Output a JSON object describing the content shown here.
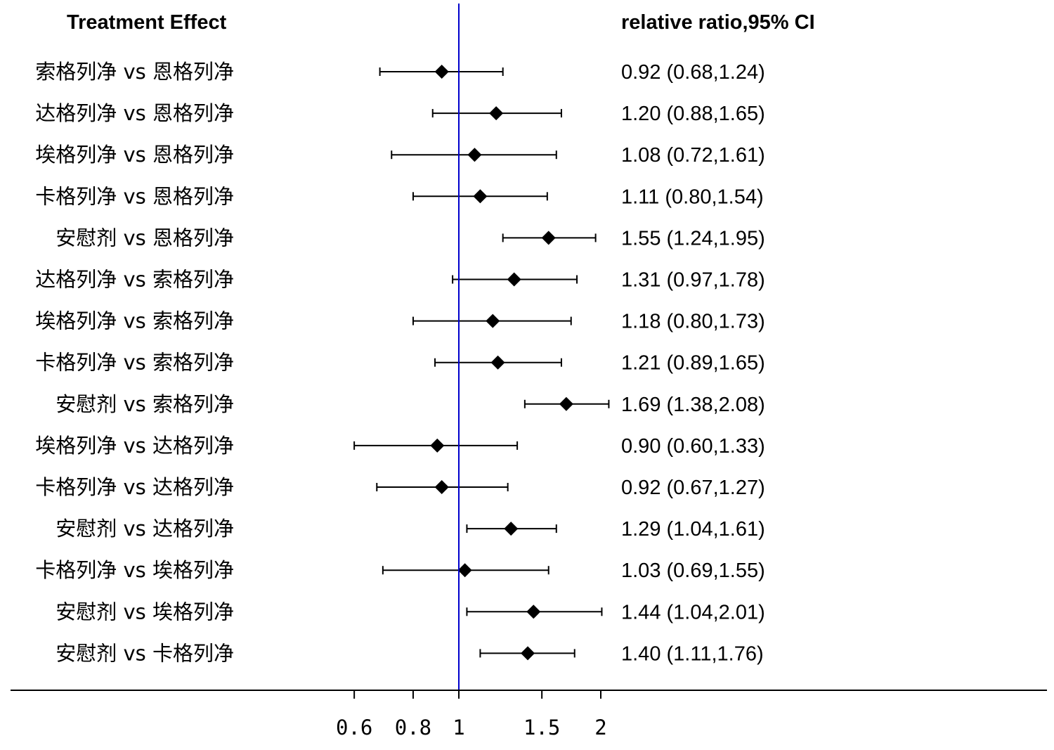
{
  "chart_data": {
    "type": "forest",
    "column_headers": {
      "left": "Treatment Effect",
      "right": "relative ratio,95% CI"
    },
    "x_scale": "log",
    "xlim": [
      0.5,
      2.6
    ],
    "reference_line": 1,
    "x_ticks": [
      {
        "value": 0.6,
        "label": "0.6"
      },
      {
        "value": 0.8,
        "label": "0.8"
      },
      {
        "value": 1,
        "label": "1"
      },
      {
        "value": 1.5,
        "label": "1.5"
      },
      {
        "value": 2,
        "label": "2"
      }
    ],
    "rows": [
      {
        "label": "索格列净 vs 恩格列净",
        "estimate": 0.92,
        "lower": 0.68,
        "upper": 1.24,
        "text": "0.92 (0.68,1.24)"
      },
      {
        "label": "达格列净 vs 恩格列净",
        "estimate": 1.2,
        "lower": 0.88,
        "upper": 1.65,
        "text": "1.20 (0.88,1.65)"
      },
      {
        "label": "埃格列净 vs 恩格列净",
        "estimate": 1.08,
        "lower": 0.72,
        "upper": 1.61,
        "text": "1.08 (0.72,1.61)"
      },
      {
        "label": "卡格列净 vs 恩格列净",
        "estimate": 1.11,
        "lower": 0.8,
        "upper": 1.54,
        "text": "1.11 (0.80,1.54)"
      },
      {
        "label": "安慰剂 vs 恩格列净",
        "estimate": 1.55,
        "lower": 1.24,
        "upper": 1.95,
        "text": "1.55 (1.24,1.95)"
      },
      {
        "label": "达格列净 vs 索格列净",
        "estimate": 1.31,
        "lower": 0.97,
        "upper": 1.78,
        "text": "1.31 (0.97,1.78)"
      },
      {
        "label": "埃格列净 vs 索格列净",
        "estimate": 1.18,
        "lower": 0.8,
        "upper": 1.73,
        "text": "1.18 (0.80,1.73)"
      },
      {
        "label": "卡格列净 vs 索格列净",
        "estimate": 1.21,
        "lower": 0.89,
        "upper": 1.65,
        "text": "1.21 (0.89,1.65)"
      },
      {
        "label": "安慰剂 vs 索格列净",
        "estimate": 1.69,
        "lower": 1.38,
        "upper": 2.08,
        "text": "1.69 (1.38,2.08)"
      },
      {
        "label": "埃格列净 vs 达格列净",
        "estimate": 0.9,
        "lower": 0.6,
        "upper": 1.33,
        "text": "0.90 (0.60,1.33)"
      },
      {
        "label": "卡格列净 vs 达格列净",
        "estimate": 0.92,
        "lower": 0.67,
        "upper": 1.27,
        "text": "0.92 (0.67,1.27)"
      },
      {
        "label": "安慰剂 vs 达格列净",
        "estimate": 1.29,
        "lower": 1.04,
        "upper": 1.61,
        "text": "1.29 (1.04,1.61)"
      },
      {
        "label": "卡格列净 vs 埃格列净",
        "estimate": 1.03,
        "lower": 0.69,
        "upper": 1.55,
        "text": "1.03 (0.69,1.55)"
      },
      {
        "label": "安慰剂 vs 埃格列净",
        "estimate": 1.44,
        "lower": 1.04,
        "upper": 2.01,
        "text": "1.44 (1.04,2.01)"
      },
      {
        "label": "安慰剂 vs 卡格列净",
        "estimate": 1.4,
        "lower": 1.11,
        "upper": 1.76,
        "text": "1.40 (1.11,1.76)"
      }
    ],
    "colors": {
      "reference_line": "#0000cc",
      "marks": "#000000",
      "axis": "#000000"
    }
  }
}
